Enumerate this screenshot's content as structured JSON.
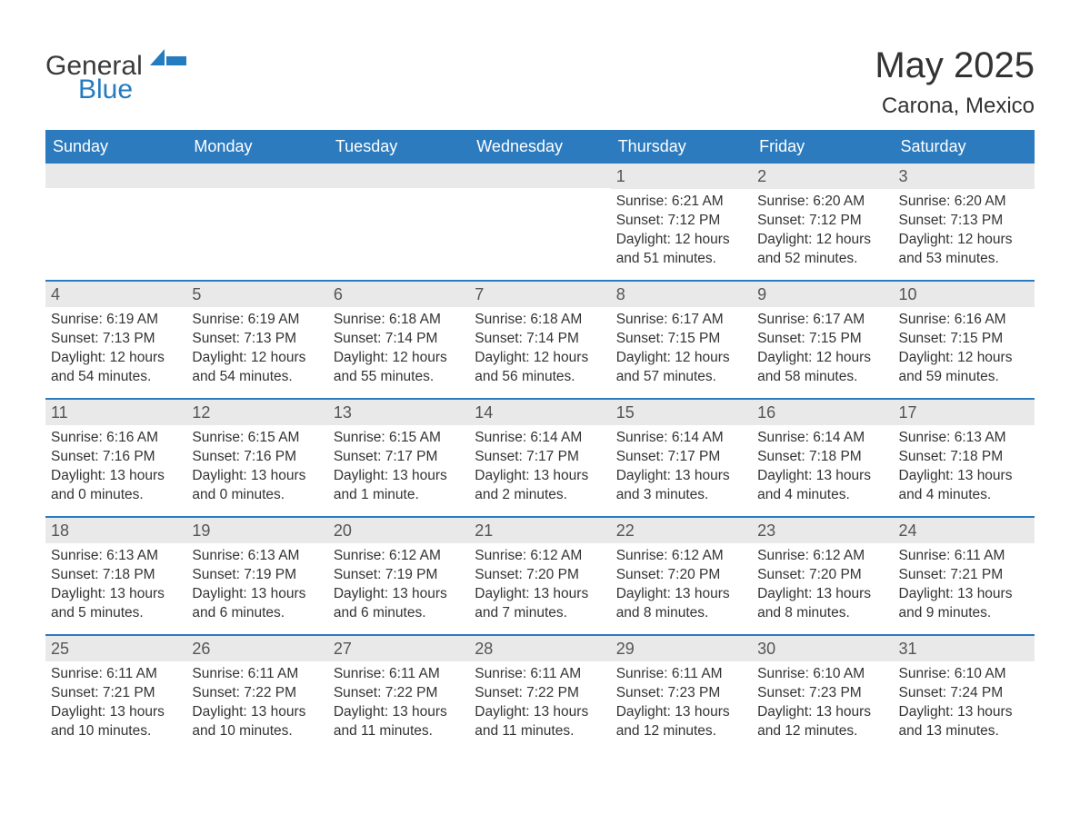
{
  "logo": {
    "word1": "General",
    "word2": "Blue"
  },
  "header": {
    "title": "May 2025",
    "location": "Carona, Mexico"
  },
  "colors": {
    "brand_blue": "#237bc0",
    "header_bar": "#2c7bbf",
    "daynum_bg": "#e9e9e9",
    "text": "#333333",
    "white": "#ffffff"
  },
  "typography": {
    "title_fontsize": 40,
    "location_fontsize": 24,
    "weekday_fontsize": 18,
    "daynum_fontsize": 18,
    "body_fontsize": 15.5
  },
  "weekdays": [
    "Sunday",
    "Monday",
    "Tuesday",
    "Wednesday",
    "Thursday",
    "Friday",
    "Saturday"
  ],
  "labels": {
    "sunrise": "Sunrise",
    "sunset": "Sunset",
    "daylight": "Daylight"
  },
  "weeks": [
    [
      null,
      null,
      null,
      null,
      {
        "n": "1",
        "sr": "6:21 AM",
        "ss": "7:12 PM",
        "dl1": "12 hours",
        "dl2": "and 51 minutes."
      },
      {
        "n": "2",
        "sr": "6:20 AM",
        "ss": "7:12 PM",
        "dl1": "12 hours",
        "dl2": "and 52 minutes."
      },
      {
        "n": "3",
        "sr": "6:20 AM",
        "ss": "7:13 PM",
        "dl1": "12 hours",
        "dl2": "and 53 minutes."
      }
    ],
    [
      {
        "n": "4",
        "sr": "6:19 AM",
        "ss": "7:13 PM",
        "dl1": "12 hours",
        "dl2": "and 54 minutes."
      },
      {
        "n": "5",
        "sr": "6:19 AM",
        "ss": "7:13 PM",
        "dl1": "12 hours",
        "dl2": "and 54 minutes."
      },
      {
        "n": "6",
        "sr": "6:18 AM",
        "ss": "7:14 PM",
        "dl1": "12 hours",
        "dl2": "and 55 minutes."
      },
      {
        "n": "7",
        "sr": "6:18 AM",
        "ss": "7:14 PM",
        "dl1": "12 hours",
        "dl2": "and 56 minutes."
      },
      {
        "n": "8",
        "sr": "6:17 AM",
        "ss": "7:15 PM",
        "dl1": "12 hours",
        "dl2": "and 57 minutes."
      },
      {
        "n": "9",
        "sr": "6:17 AM",
        "ss": "7:15 PM",
        "dl1": "12 hours",
        "dl2": "and 58 minutes."
      },
      {
        "n": "10",
        "sr": "6:16 AM",
        "ss": "7:15 PM",
        "dl1": "12 hours",
        "dl2": "and 59 minutes."
      }
    ],
    [
      {
        "n": "11",
        "sr": "6:16 AM",
        "ss": "7:16 PM",
        "dl1": "13 hours",
        "dl2": "and 0 minutes."
      },
      {
        "n": "12",
        "sr": "6:15 AM",
        "ss": "7:16 PM",
        "dl1": "13 hours",
        "dl2": "and 0 minutes."
      },
      {
        "n": "13",
        "sr": "6:15 AM",
        "ss": "7:17 PM",
        "dl1": "13 hours",
        "dl2": "and 1 minute."
      },
      {
        "n": "14",
        "sr": "6:14 AM",
        "ss": "7:17 PM",
        "dl1": "13 hours",
        "dl2": "and 2 minutes."
      },
      {
        "n": "15",
        "sr": "6:14 AM",
        "ss": "7:17 PM",
        "dl1": "13 hours",
        "dl2": "and 3 minutes."
      },
      {
        "n": "16",
        "sr": "6:14 AM",
        "ss": "7:18 PM",
        "dl1": "13 hours",
        "dl2": "and 4 minutes."
      },
      {
        "n": "17",
        "sr": "6:13 AM",
        "ss": "7:18 PM",
        "dl1": "13 hours",
        "dl2": "and 4 minutes."
      }
    ],
    [
      {
        "n": "18",
        "sr": "6:13 AM",
        "ss": "7:18 PM",
        "dl1": "13 hours",
        "dl2": "and 5 minutes."
      },
      {
        "n": "19",
        "sr": "6:13 AM",
        "ss": "7:19 PM",
        "dl1": "13 hours",
        "dl2": "and 6 minutes."
      },
      {
        "n": "20",
        "sr": "6:12 AM",
        "ss": "7:19 PM",
        "dl1": "13 hours",
        "dl2": "and 6 minutes."
      },
      {
        "n": "21",
        "sr": "6:12 AM",
        "ss": "7:20 PM",
        "dl1": "13 hours",
        "dl2": "and 7 minutes."
      },
      {
        "n": "22",
        "sr": "6:12 AM",
        "ss": "7:20 PM",
        "dl1": "13 hours",
        "dl2": "and 8 minutes."
      },
      {
        "n": "23",
        "sr": "6:12 AM",
        "ss": "7:20 PM",
        "dl1": "13 hours",
        "dl2": "and 8 minutes."
      },
      {
        "n": "24",
        "sr": "6:11 AM",
        "ss": "7:21 PM",
        "dl1": "13 hours",
        "dl2": "and 9 minutes."
      }
    ],
    [
      {
        "n": "25",
        "sr": "6:11 AM",
        "ss": "7:21 PM",
        "dl1": "13 hours",
        "dl2": "and 10 minutes."
      },
      {
        "n": "26",
        "sr": "6:11 AM",
        "ss": "7:22 PM",
        "dl1": "13 hours",
        "dl2": "and 10 minutes."
      },
      {
        "n": "27",
        "sr": "6:11 AM",
        "ss": "7:22 PM",
        "dl1": "13 hours",
        "dl2": "and 11 minutes."
      },
      {
        "n": "28",
        "sr": "6:11 AM",
        "ss": "7:22 PM",
        "dl1": "13 hours",
        "dl2": "and 11 minutes."
      },
      {
        "n": "29",
        "sr": "6:11 AM",
        "ss": "7:23 PM",
        "dl1": "13 hours",
        "dl2": "and 12 minutes."
      },
      {
        "n": "30",
        "sr": "6:10 AM",
        "ss": "7:23 PM",
        "dl1": "13 hours",
        "dl2": "and 12 minutes."
      },
      {
        "n": "31",
        "sr": "6:10 AM",
        "ss": "7:24 PM",
        "dl1": "13 hours",
        "dl2": "and 13 minutes."
      }
    ]
  ]
}
